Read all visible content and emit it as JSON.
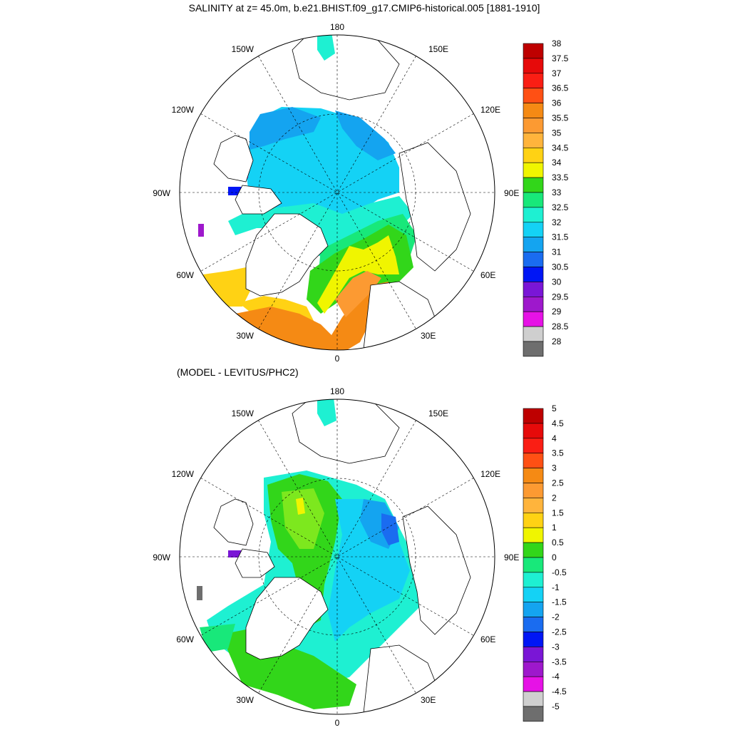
{
  "title": "SALINITY at z=  45.0m, b.e21.BHIST.f09_g17.CMIP6-historical.005 [1881-1910]",
  "subtitle": "(MODEL - LEVITUS/PHC2)",
  "longitude_labels": [
    "180",
    "150E",
    "120E",
    "90E",
    "60E",
    "30E",
    "0",
    "30W",
    "60W",
    "90W",
    "120W",
    "150W"
  ],
  "colors": {
    "land": "#ffffff",
    "coast": "#000000",
    "map_border": "#000000",
    "graticule": "#000000"
  },
  "palette": [
    "#6e6e6e",
    "#cfcfcf",
    "#e612e6",
    "#9e18cc",
    "#7a16d6",
    "#0016f5",
    "#1a6cf0",
    "#14a4f0",
    "#14d2f5",
    "#1ef0d2",
    "#18e87a",
    "#32d61a",
    "#7de81e",
    "#f0f500",
    "#ffd214",
    "#ffb43c",
    "#fc9a32",
    "#f58a14",
    "#ff5014",
    "#fa1e14",
    "#e60a0a",
    "#be0000"
  ],
  "chart_data": [
    {
      "type": "map",
      "projection": "north polar stereographic",
      "title": "SALINITY at z=  45.0m, b.e21.BHIST.f09_g17.CMIP6-historical.005 [1881-1910]",
      "colorbar": {
        "levels": [
          "38",
          "37.5",
          "37",
          "36.5",
          "36",
          "35.5",
          "35",
          "34.5",
          "34",
          "33.5",
          "33",
          "32.5",
          "32",
          "31.5",
          "31",
          "30.5",
          "30",
          "29.5",
          "29",
          "28.5",
          "28"
        ],
        "colors": [
          "#be0000",
          "#e60a0a",
          "#fa1e14",
          "#ff5014",
          "#f58a14",
          "#fc9a32",
          "#ffb43c",
          "#ffd214",
          "#f0f500",
          "#32d61a",
          "#18e87a",
          "#1ef0d2",
          "#14d2f5",
          "#14a4f0",
          "#1a6cf0",
          "#0016f5",
          "#7a16d6",
          "#9e18cc",
          "#e612e6",
          "#cfcfcf",
          "#6e6e6e"
        ]
      }
    },
    {
      "type": "map",
      "projection": "north polar stereographic",
      "title": "(MODEL - LEVITUS/PHC2)",
      "colorbar": {
        "levels": [
          "5",
          "4.5",
          "4",
          "3.5",
          "3",
          "2.5",
          "2",
          "1.5",
          "1",
          "0.5",
          "0",
          "-0.5",
          "-1",
          "-1.5",
          "-2",
          "-2.5",
          "-3",
          "-3.5",
          "-4",
          "-4.5",
          "-5"
        ],
        "colors": [
          "#be0000",
          "#e60a0a",
          "#fa1e14",
          "#ff5014",
          "#f58a14",
          "#fc9a32",
          "#ffb43c",
          "#ffd214",
          "#f0f500",
          "#32d61a",
          "#18e87a",
          "#1ef0d2",
          "#14d2f5",
          "#14a4f0",
          "#1a6cf0",
          "#0016f5",
          "#7a16d6",
          "#9e18cc",
          "#e612e6",
          "#cfcfcf",
          "#6e6e6e"
        ]
      }
    }
  ]
}
